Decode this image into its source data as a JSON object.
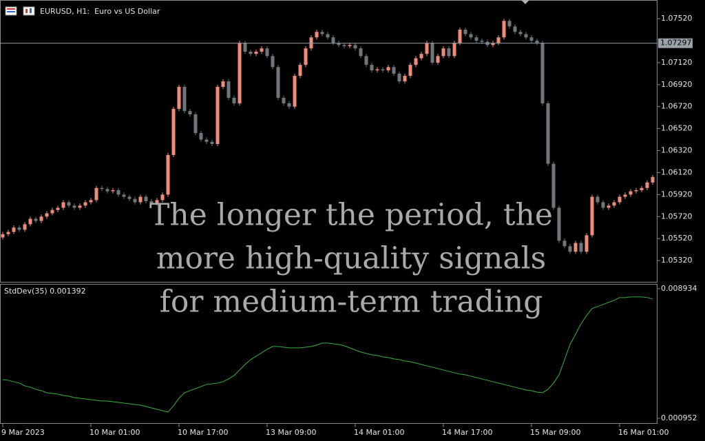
{
  "chart_data": {
    "type": "candlestick",
    "title": "EURUSD, H1:  Euro vs US Dollar",
    "annotation": [
      "The longer the period, the",
      "more high-quality signals",
      "for medium-term trading"
    ],
    "categories": [
      "9 Mar 2023",
      null,
      null,
      null,
      null,
      null,
      null,
      null,
      null,
      null,
      null,
      null,
      null,
      null,
      null,
      null,
      "10 Mar 01:00",
      null,
      null,
      null,
      null,
      null,
      null,
      null,
      null,
      null,
      null,
      null,
      null,
      null,
      null,
      null,
      "10 Mar 17:00",
      null,
      null,
      null,
      null,
      null,
      null,
      null,
      null,
      null,
      null,
      null,
      null,
      null,
      null,
      null,
      "13 Mar 09:00",
      null,
      null,
      null,
      null,
      null,
      null,
      null,
      null,
      null,
      null,
      null,
      null,
      null,
      null,
      null,
      "14 Mar 01:00",
      null,
      null,
      null,
      null,
      null,
      null,
      null,
      null,
      null,
      null,
      null,
      null,
      null,
      null,
      null,
      "14 Mar 17:00",
      null,
      null,
      null,
      null,
      null,
      null,
      null,
      null,
      null,
      null,
      null,
      null,
      null,
      null,
      null,
      "15 Mar 09:00",
      null,
      null,
      null,
      null,
      null,
      null,
      null,
      null,
      null,
      null,
      null,
      null,
      null,
      null,
      null,
      "16 Mar 01:00",
      null,
      null,
      null,
      null,
      null,
      null
    ],
    "open": [
      1.0553,
      1.0556,
      1.0558,
      1.0562,
      1.056,
      1.0565,
      1.057,
      1.0568,
      1.0572,
      1.0575,
      1.0578,
      1.058,
      1.0585,
      1.0582,
      1.058,
      1.0582,
      1.0585,
      1.0587,
      1.0598,
      1.0597,
      1.0595,
      1.0596,
      1.0592,
      1.059,
      1.0588,
      1.0585,
      1.059,
      1.0586,
      1.0584,
      1.0587,
      1.0592,
      1.0628,
      1.067,
      1.069,
      1.0668,
      1.0665,
      1.0648,
      1.0642,
      1.064,
      1.0638,
      1.069,
      1.0695,
      1.068,
      1.0675,
      1.073,
      1.0722,
      1.072,
      1.0722,
      1.0725,
      1.0718,
      1.0708,
      1.068,
      1.0675,
      1.0672,
      1.07,
      1.071,
      1.0725,
      1.0735,
      1.074,
      1.0738,
      1.0735,
      1.073,
      1.0728,
      1.0727,
      1.0728,
      1.0725,
      1.0718,
      1.071,
      1.0705,
      1.0706,
      1.0705,
      1.0708,
      1.0702,
      1.0695,
      1.07,
      1.071,
      1.0716,
      1.072,
      1.073,
      1.0712,
      1.0718,
      1.0725,
      1.0718,
      1.073,
      1.0742,
      1.0738,
      1.0735,
      1.0732,
      1.0731,
      1.0728,
      1.073,
      1.0735,
      1.075,
      1.0745,
      1.074,
      1.0738,
      1.0735,
      1.0732,
      1.073,
      1.0675,
      1.062,
      1.058,
      1.055,
      1.0545,
      1.054,
      1.0548,
      1.054,
      1.0555,
      1.059,
      1.0585,
      1.058,
      1.0582,
      1.0585,
      1.059,
      1.0592,
      1.0595,
      1.0596,
      1.0598,
      1.0603
    ],
    "high": [
      1.0558,
      1.056,
      1.0564,
      1.0564,
      1.0567,
      1.0572,
      1.0572,
      1.0574,
      1.0577,
      1.058,
      1.0582,
      1.0587,
      1.0587,
      1.0584,
      1.0584,
      1.0587,
      1.0589,
      1.06,
      1.06,
      1.0599,
      1.0598,
      1.0598,
      1.0594,
      1.0592,
      1.059,
      1.0592,
      1.0592,
      1.0588,
      1.0589,
      1.0594,
      1.063,
      1.0672,
      1.0692,
      1.0692,
      1.067,
      1.0667,
      1.065,
      1.0644,
      1.0642,
      1.0692,
      1.0697,
      1.0697,
      1.0682,
      1.0732,
      1.0732,
      1.0724,
      1.0724,
      1.0727,
      1.0727,
      1.072,
      1.071,
      1.0682,
      1.0677,
      1.0702,
      1.0712,
      1.0727,
      1.0737,
      1.0742,
      1.0742,
      1.074,
      1.0737,
      1.0732,
      1.073,
      1.073,
      1.073,
      1.0727,
      1.072,
      1.0712,
      1.0708,
      1.0708,
      1.071,
      1.071,
      1.0704,
      1.0702,
      1.0712,
      1.0718,
      1.0722,
      1.0732,
      1.0732,
      1.072,
      1.0727,
      1.0727,
      1.0732,
      1.0744,
      1.0744,
      1.074,
      1.0737,
      1.0734,
      1.0733,
      1.0732,
      1.0737,
      1.0752,
      1.0752,
      1.0747,
      1.0742,
      1.074,
      1.0737,
      1.0734,
      1.0732,
      1.0677,
      1.0622,
      1.0582,
      1.0552,
      1.0547,
      1.055,
      1.055,
      1.0557,
      1.0592,
      1.0592,
      1.0587,
      1.0584,
      1.0587,
      1.0592,
      1.0594,
      1.0597,
      1.0598,
      1.06,
      1.0605,
      1.061
    ],
    "low": [
      1.0551,
      1.0554,
      1.0556,
      1.0558,
      1.0558,
      1.0563,
      1.0566,
      1.0566,
      1.057,
      1.0573,
      1.0576,
      1.0578,
      1.058,
      1.0578,
      1.0578,
      1.058,
      1.0583,
      1.0585,
      1.0595,
      1.0593,
      1.0593,
      1.059,
      1.0588,
      1.0586,
      1.0583,
      1.0583,
      1.0584,
      1.0582,
      1.0582,
      1.0585,
      1.059,
      1.0626,
      1.0668,
      1.0666,
      1.0663,
      1.0646,
      1.064,
      1.0638,
      1.0636,
      1.0636,
      1.0688,
      1.0678,
      1.0673,
      1.0673,
      1.072,
      1.0718,
      1.0718,
      1.072,
      1.0716,
      1.0706,
      1.0678,
      1.0673,
      1.067,
      1.067,
      1.0698,
      1.0708,
      1.0723,
      1.0733,
      1.0736,
      1.0733,
      1.0728,
      1.0726,
      1.0725,
      1.0725,
      1.0723,
      1.0716,
      1.0708,
      1.0703,
      1.0703,
      1.0703,
      1.0703,
      1.07,
      1.0693,
      1.0693,
      1.0698,
      1.0708,
      1.0714,
      1.0718,
      1.071,
      1.071,
      1.0716,
      1.0716,
      1.0716,
      1.0728,
      1.0736,
      1.0733,
      1.073,
      1.0729,
      1.0726,
      1.0726,
      1.0728,
      1.0733,
      1.0743,
      1.0738,
      1.0736,
      1.0733,
      1.073,
      1.0728,
      1.0673,
      1.0618,
      1.0578,
      1.0548,
      1.0543,
      1.0538,
      1.0538,
      1.0538,
      1.0538,
      1.0553,
      1.0583,
      1.0578,
      1.0578,
      1.058,
      1.0583,
      1.0588,
      1.059,
      1.0593,
      1.0594,
      1.0596,
      1.0601
    ],
    "close": [
      1.0556,
      1.0558,
      1.0562,
      1.056,
      1.0565,
      1.057,
      1.0568,
      1.0572,
      1.0575,
      1.0578,
      1.058,
      1.0585,
      1.0582,
      1.058,
      1.0582,
      1.0585,
      1.0587,
      1.0598,
      1.0597,
      1.0595,
      1.0596,
      1.0592,
      1.059,
      1.0588,
      1.0585,
      1.059,
      1.0586,
      1.0584,
      1.0587,
      1.0592,
      1.0628,
      1.067,
      1.069,
      1.0668,
      1.0665,
      1.0648,
      1.0642,
      1.064,
      1.0638,
      1.069,
      1.0695,
      1.068,
      1.0675,
      1.073,
      1.0722,
      1.072,
      1.0722,
      1.0725,
      1.0718,
      1.0708,
      1.068,
      1.0675,
      1.0672,
      1.07,
      1.071,
      1.0725,
      1.0735,
      1.074,
      1.0738,
      1.0735,
      1.073,
      1.0728,
      1.0727,
      1.0728,
      1.0725,
      1.0718,
      1.071,
      1.0705,
      1.0706,
      1.0705,
      1.0708,
      1.0702,
      1.0695,
      1.07,
      1.071,
      1.0716,
      1.072,
      1.073,
      1.0712,
      1.0718,
      1.0725,
      1.0718,
      1.073,
      1.0742,
      1.0738,
      1.0735,
      1.0732,
      1.0731,
      1.0728,
      1.073,
      1.0735,
      1.075,
      1.0745,
      1.074,
      1.0738,
      1.0735,
      1.0732,
      1.073,
      1.0675,
      1.062,
      1.058,
      1.055,
      1.0545,
      1.054,
      1.0548,
      1.054,
      1.0555,
      1.059,
      1.0585,
      1.058,
      1.0582,
      1.0585,
      1.059,
      1.0592,
      1.0595,
      1.0596,
      1.0598,
      1.0603,
      1.0608
    ],
    "up_color": "#ef8a7e",
    "down_color": "#6f767c",
    "ylim": [
      1.0512,
      1.0769
    ],
    "yticks": [
      {
        "value": 1.0752,
        "label": "1.07520"
      },
      {
        "value": 1.0712,
        "label": "1.07120"
      },
      {
        "value": 1.0692,
        "label": "1.06920"
      },
      {
        "value": 1.0672,
        "label": "1.06720"
      },
      {
        "value": 1.0652,
        "label": "1.06520"
      },
      {
        "value": 1.0632,
        "label": "1.06320"
      },
      {
        "value": 1.0612,
        "label": "1.06120"
      },
      {
        "value": 1.0592,
        "label": "1.05920"
      },
      {
        "value": 1.0572,
        "label": "1.05720"
      },
      {
        "value": 1.0552,
        "label": "1.05520"
      },
      {
        "value": 1.0532,
        "label": "1.05320"
      }
    ],
    "current_price": 1.07297,
    "y2lim": [
      0.000952,
      0.008934
    ],
    "y2ticks": [
      0.008934,
      0.000952
    ],
    "series": [
      {
        "name": "StdDev(35) 0.001392",
        "color": "#3cb043",
        "axis": "y2",
        "values": [
          0.003332,
          0.00329,
          0.003205,
          0.00312,
          0.00295,
          0.002865,
          0.002737,
          0.002652,
          0.002525,
          0.002482,
          0.00244,
          0.002355,
          0.002312,
          0.002227,
          0.002185,
          0.002142,
          0.0021,
          0.002057,
          0.002015,
          0.002015,
          0.001972,
          0.00193,
          0.001887,
          0.001845,
          0.001802,
          0.00176,
          0.001675,
          0.00159,
          0.001505,
          0.00142,
          0.001335,
          0.001717,
          0.002185,
          0.002525,
          0.002652,
          0.00278,
          0.002907,
          0.003035,
          0.003077,
          0.00312,
          0.003205,
          0.003375,
          0.003587,
          0.003927,
          0.004267,
          0.004565,
          0.004777,
          0.00499,
          0.005202,
          0.005372,
          0.005372,
          0.00533,
          0.005287,
          0.005287,
          0.005287,
          0.00533,
          0.005372,
          0.005457,
          0.005585,
          0.005585,
          0.005542,
          0.0055,
          0.005415,
          0.005287,
          0.00516,
          0.005032,
          0.004947,
          0.004862,
          0.00482,
          0.004735,
          0.004692,
          0.004607,
          0.004565,
          0.00448,
          0.004437,
          0.004352,
          0.004267,
          0.004182,
          0.004097,
          0.004012,
          0.003927,
          0.003842,
          0.003757,
          0.003672,
          0.00363,
          0.003545,
          0.00346,
          0.003375,
          0.00329,
          0.003205,
          0.00312,
          0.003035,
          0.00295,
          0.002865,
          0.00278,
          0.002695,
          0.002652,
          0.002567,
          0.002525,
          0.002737,
          0.00312,
          0.00363,
          0.004565,
          0.0055,
          0.006137,
          0.006775,
          0.007285,
          0.00771,
          0.007837,
          0.007965,
          0.008092,
          0.00822,
          0.00839,
          0.00839,
          0.008432,
          0.008432,
          0.008432,
          0.00839,
          0.008305
        ]
      }
    ]
  }
}
